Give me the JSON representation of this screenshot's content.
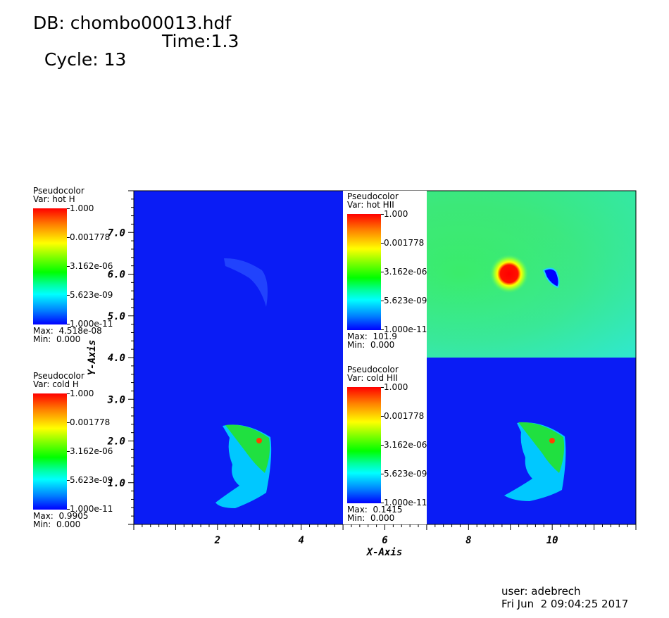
{
  "header": {
    "db": "DB: chombo00013.hdf",
    "cycle": "Cycle: 13",
    "time": "Time:1.3"
  },
  "footer": {
    "user": "user: adebrech",
    "date": "Fri Jun  2 09:04:25 2017"
  },
  "chart_data": {
    "type": "heatmap",
    "xlabel": "X-Axis",
    "ylabel": "Y-Axis",
    "xlim": [
      0,
      12
    ],
    "ylim": [
      0,
      8
    ],
    "xticks": [
      2,
      4,
      6,
      8,
      10
    ],
    "xtick_labels": [
      "2",
      "4",
      "6",
      "8",
      "10"
    ],
    "yticks": [
      1,
      2,
      3,
      4,
      5,
      6,
      7
    ],
    "ytick_labels": [
      "1.0",
      "2.0",
      "3.0",
      "4.0",
      "5.0",
      "6.0",
      "7.0"
    ],
    "colormap": "hot_desaturated (blue-cyan-green-yellow-red)",
    "colors": {
      "low": "#0000ff",
      "mid": "#00ff00",
      "high": "#ff0000",
      "background_hot_HII": "#44e87a"
    },
    "panels": [
      {
        "var": "hot H",
        "quadrant": "upper-left"
      },
      {
        "var": "hot HII",
        "quadrant": "upper-right"
      },
      {
        "var": "cold H",
        "quadrant": "lower-left"
      },
      {
        "var": "cold HII",
        "quadrant": "lower-right"
      }
    ],
    "legends": [
      {
        "title": "Pseudocolor",
        "var": "Var: hot H",
        "labels": [
          "1.000",
          "0.001778",
          "3.162e-06",
          "5.623e-09",
          "1.000e-11"
        ],
        "max": "Max:  4.518e-08",
        "min": "Min:  0.000"
      },
      {
        "title": "Pseudocolor",
        "var": "Var: cold H",
        "labels": [
          "1.000",
          "0.001778",
          "3.162e-06",
          "5.623e-09",
          "1.000e-11"
        ],
        "max": "Max:  0.9905",
        "min": "Min:  0.000"
      },
      {
        "title": "Pseudocolor",
        "var": "Var: hot HII",
        "labels": [
          "1.000",
          "0.001778",
          "3.162e-06",
          "5.623e-09",
          "1.000e-11"
        ],
        "max": "Max:  101.9",
        "min": "Min:  0.000"
      },
      {
        "title": "Pseudocolor",
        "var": "Var: cold HII",
        "labels": [
          "1.000",
          "0.001778",
          "3.162e-06",
          "5.623e-09",
          "1.000e-11"
        ],
        "max": "Max:  0.1415",
        "min": "Min:  0.000"
      }
    ]
  }
}
